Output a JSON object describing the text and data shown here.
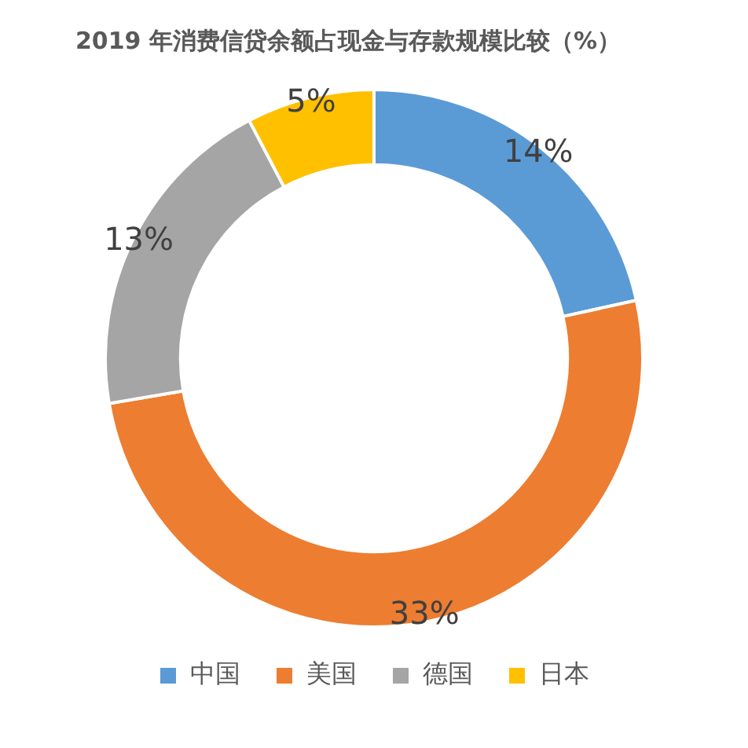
{
  "chart_data": {
    "type": "donut",
    "title": "2019 年消费信贷余额占现金与存款规模比较（%）",
    "categories": [
      "中国",
      "美国",
      "德国",
      "日本"
    ],
    "values": [
      14,
      33,
      13,
      5
    ],
    "colors": [
      "#5b9bd5",
      "#ed7d31",
      "#a5a5a5",
      "#ffc000"
    ],
    "value_labels": [
      "14%",
      "33%",
      "13%",
      "5%"
    ],
    "legend": "bottom"
  }
}
